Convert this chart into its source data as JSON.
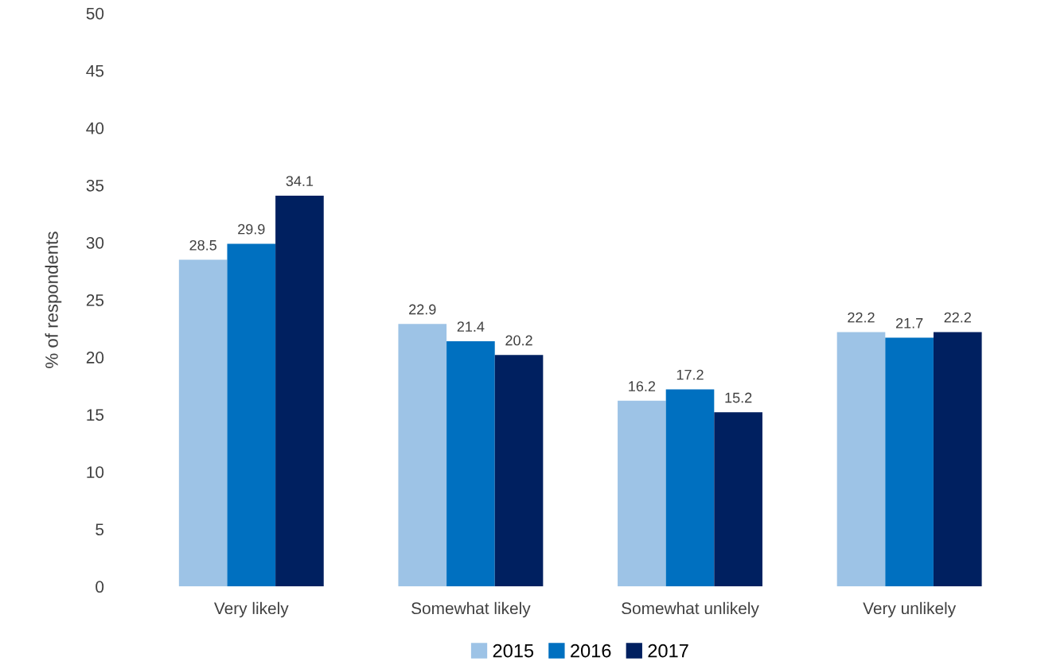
{
  "chart_data": {
    "type": "bar",
    "ylabel": "% of respondents",
    "categories": [
      "Very likely",
      "Somewhat likely",
      "Somewhat unlikely",
      "Very unlikely"
    ],
    "series": [
      {
        "name": "2015",
        "color": "#9dc3e6",
        "values": [
          28.5,
          22.9,
          16.2,
          22.2
        ]
      },
      {
        "name": "2016",
        "color": "#0070c0",
        "values": [
          29.9,
          21.4,
          17.2,
          21.7
        ]
      },
      {
        "name": "2017",
        "color": "#002060",
        "values": [
          34.1,
          20.2,
          15.2,
          22.2
        ]
      }
    ],
    "ylim": [
      0,
      50
    ],
    "yticks": [
      0,
      5,
      10,
      15,
      20,
      25,
      30,
      35,
      40,
      45,
      50
    ],
    "data_labels": true,
    "grid": false,
    "legend": "bottom"
  }
}
